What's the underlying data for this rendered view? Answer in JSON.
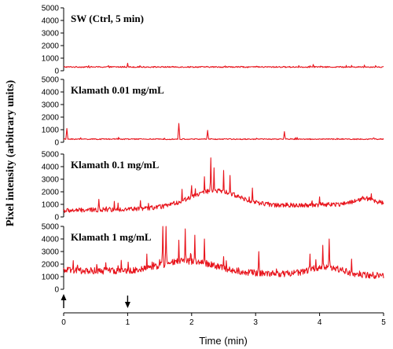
{
  "chart_data": {
    "type": "line",
    "ylabel": "Pixel intensity (arbitrary units)",
    "xlabel": "Time (min)",
    "xlim": [
      0,
      5
    ],
    "x_ticks": [
      "0",
      "1",
      "2",
      "3",
      "4",
      "5"
    ],
    "y_ticks": [
      "0",
      "1000",
      "2000",
      "3000",
      "4000",
      "5000"
    ],
    "ylim": [
      0,
      5000
    ],
    "line_color": "#e8141c",
    "arrows": [
      {
        "x": 0,
        "direction": "up"
      },
      {
        "x": 1,
        "direction": "down"
      }
    ],
    "panels": [
      {
        "title": "SW (Ctrl, 5 min)",
        "baseline_start": 300,
        "baseline_end": 300,
        "bumps": [],
        "noise": 50,
        "spikes": [
          {
            "x": 1.0,
            "y": 600
          },
          {
            "x": 3.9,
            "y": 500
          },
          {
            "x": 4.7,
            "y": 450
          }
        ]
      },
      {
        "title": "Klamath 0.01 mg/mL",
        "baseline_start": 250,
        "baseline_end": 250,
        "bumps": [],
        "noise": 40,
        "spikes": [
          {
            "x": 0.05,
            "y": 1100
          },
          {
            "x": 1.8,
            "y": 1500
          },
          {
            "x": 2.25,
            "y": 950
          },
          {
            "x": 3.45,
            "y": 850
          }
        ]
      },
      {
        "title": "Klamath 0.1 mg/mL",
        "baseline_start": 500,
        "baseline_end": 1100,
        "bumps": [
          {
            "center": 2.35,
            "width": 0.55,
            "amp": 1300
          },
          {
            "center": 4.7,
            "width": 0.2,
            "amp": 400
          }
        ],
        "noise": 180,
        "spikes": [
          {
            "x": 0.55,
            "y": 1400
          },
          {
            "x": 1.2,
            "y": 1300
          },
          {
            "x": 1.85,
            "y": 2200
          },
          {
            "x": 2.0,
            "y": 2500
          },
          {
            "x": 2.2,
            "y": 3200
          },
          {
            "x": 2.3,
            "y": 4700
          },
          {
            "x": 2.35,
            "y": 3900
          },
          {
            "x": 2.5,
            "y": 3700
          },
          {
            "x": 2.6,
            "y": 3300
          },
          {
            "x": 2.95,
            "y": 2300
          },
          {
            "x": 4.0,
            "y": 1600
          }
        ]
      },
      {
        "title": "Klamath 1 mg/mL",
        "baseline_start": 1500,
        "baseline_end": 1100,
        "bumps": [
          {
            "center": 1.95,
            "width": 0.6,
            "amp": 900
          },
          {
            "center": 4.1,
            "width": 0.35,
            "amp": 600
          }
        ],
        "noise": 260,
        "spikes": [
          {
            "x": 0.9,
            "y": 2300
          },
          {
            "x": 1.3,
            "y": 2800
          },
          {
            "x": 1.55,
            "y": 5000
          },
          {
            "x": 1.6,
            "y": 5000
          },
          {
            "x": 1.8,
            "y": 3900
          },
          {
            "x": 1.9,
            "y": 4800
          },
          {
            "x": 2.05,
            "y": 4300
          },
          {
            "x": 2.2,
            "y": 4000
          },
          {
            "x": 2.5,
            "y": 2600
          },
          {
            "x": 3.05,
            "y": 3000
          },
          {
            "x": 3.85,
            "y": 2800
          },
          {
            "x": 4.05,
            "y": 3500
          },
          {
            "x": 4.15,
            "y": 4000
          },
          {
            "x": 4.5,
            "y": 2400
          }
        ]
      }
    ]
  }
}
